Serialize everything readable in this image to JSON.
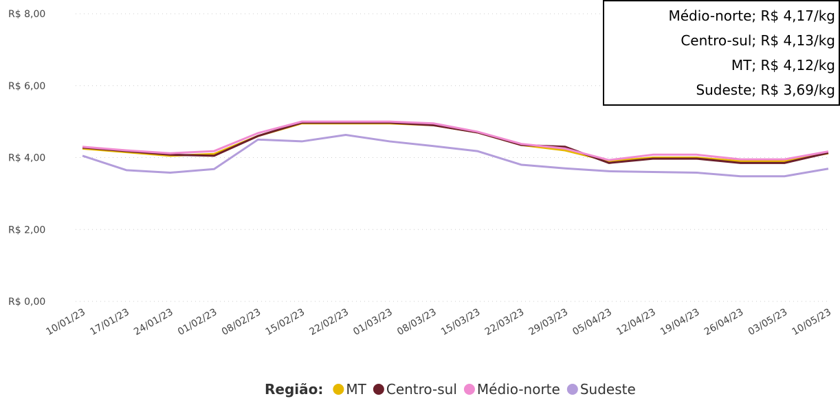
{
  "chart_data": {
    "type": "line",
    "annotations": [
      "Médio-norte; R$ 4,17/kg",
      "Centro-sul; R$ 4,13/kg",
      "MT; R$ 4,12/kg",
      "Sudeste; R$ 3,69/kg"
    ],
    "legend_title": "Região:",
    "legend": "bottom",
    "grid": true,
    "categories": [
      "10/01/23",
      "17/01/23",
      "24/01/23",
      "01/02/23",
      "08/02/23",
      "15/02/23",
      "22/02/23",
      "01/03/23",
      "08/03/23",
      "15/03/23",
      "22/03/23",
      "29/03/23",
      "05/04/23",
      "12/04/23",
      "19/04/23",
      "26/04/23",
      "03/05/23",
      "10/05/23"
    ],
    "ylim": [
      0,
      8
    ],
    "yticks": [
      {
        "value": 0,
        "label": "R$ 0,00"
      },
      {
        "value": 2,
        "label": "R$ 2,00"
      },
      {
        "value": 4,
        "label": "R$ 4,00"
      },
      {
        "value": 6,
        "label": "R$ 6,00"
      },
      {
        "value": 8,
        "label": "R$ 8,00"
      }
    ],
    "series": [
      {
        "name": "MT",
        "color": "#e6b800",
        "values": [
          4.25,
          4.15,
          4.05,
          4.1,
          4.6,
          4.95,
          4.95,
          4.95,
          4.9,
          4.7,
          4.35,
          4.2,
          3.9,
          4.0,
          4.0,
          3.9,
          3.9,
          4.12
        ]
      },
      {
        "name": "Centro-sul",
        "color": "#6b1f2a",
        "values": [
          4.28,
          4.18,
          4.08,
          4.05,
          4.6,
          4.97,
          4.97,
          4.97,
          4.9,
          4.7,
          4.35,
          4.3,
          3.85,
          3.97,
          3.97,
          3.85,
          3.85,
          4.13
        ]
      },
      {
        "name": "Médio-norte",
        "color": "#f08bd0",
        "values": [
          4.3,
          4.2,
          4.12,
          4.18,
          4.68,
          5.0,
          5.0,
          5.0,
          4.95,
          4.72,
          4.38,
          4.25,
          3.93,
          4.08,
          4.08,
          3.95,
          3.95,
          4.17
        ]
      },
      {
        "name": "Sudeste",
        "color": "#b39ddb",
        "values": [
          4.05,
          3.65,
          3.58,
          3.68,
          4.5,
          4.45,
          4.63,
          4.45,
          4.32,
          4.18,
          3.8,
          3.7,
          3.62,
          3.6,
          3.58,
          3.48,
          3.48,
          3.69
        ]
      }
    ]
  }
}
